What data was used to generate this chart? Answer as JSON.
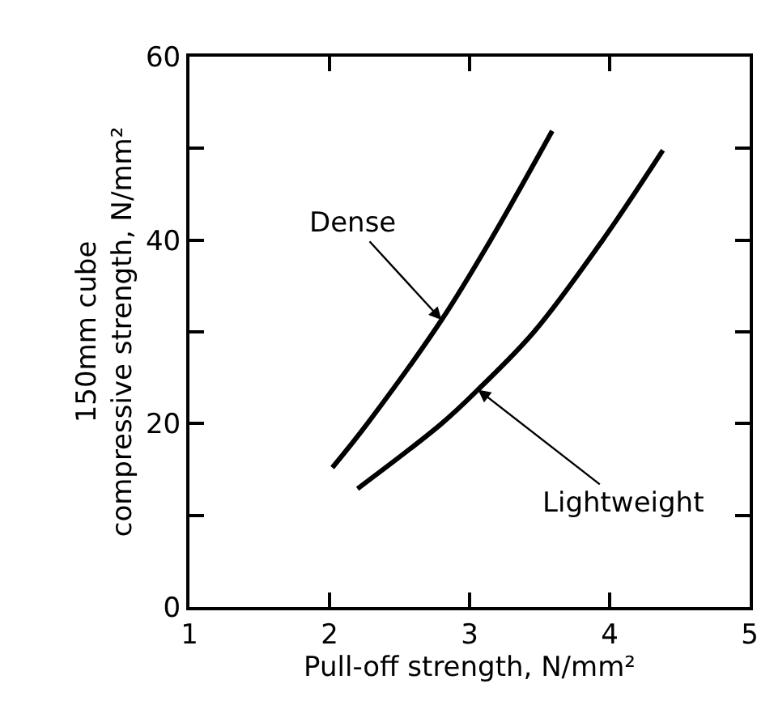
{
  "chart_data": {
    "type": "line",
    "xlabel": "Pull-off strength, N/mm²",
    "ylabel": "150mm cube\ncompressive strength, N/mm²",
    "series": [
      {
        "color": "#000000",
        "x": [
          2.02,
          2.27,
          2.8,
          3.15,
          3.59
        ],
        "values": [
          15.2,
          20,
          31.3,
          40,
          51.9
        ]
      },
      {
        "color": "#000000",
        "x": [
          2.2,
          2.8,
          3.06,
          3.46,
          3.95,
          4.38
        ],
        "values": [
          12.9,
          20,
          23.7,
          30,
          40,
          49.8
        ]
      }
    ],
    "annotations": [
      {
        "text": "Dense",
        "x": 2.8,
        "y": 31.3
      },
      {
        "text": "Lightweight",
        "x": 3.06,
        "y": 23.7
      }
    ],
    "xlim": [
      1,
      5
    ],
    "xticks": [
      1,
      2,
      3,
      4,
      5
    ],
    "ylim": [
      0,
      60
    ],
    "yticks": [
      0,
      {
        "value": 10,
        "label": null
      },
      20,
      {
        "value": 30,
        "label": null
      },
      40,
      {
        "value": 50,
        "label": null
      },
      60
    ],
    "marker": "none",
    "line_style": "solid"
  }
}
